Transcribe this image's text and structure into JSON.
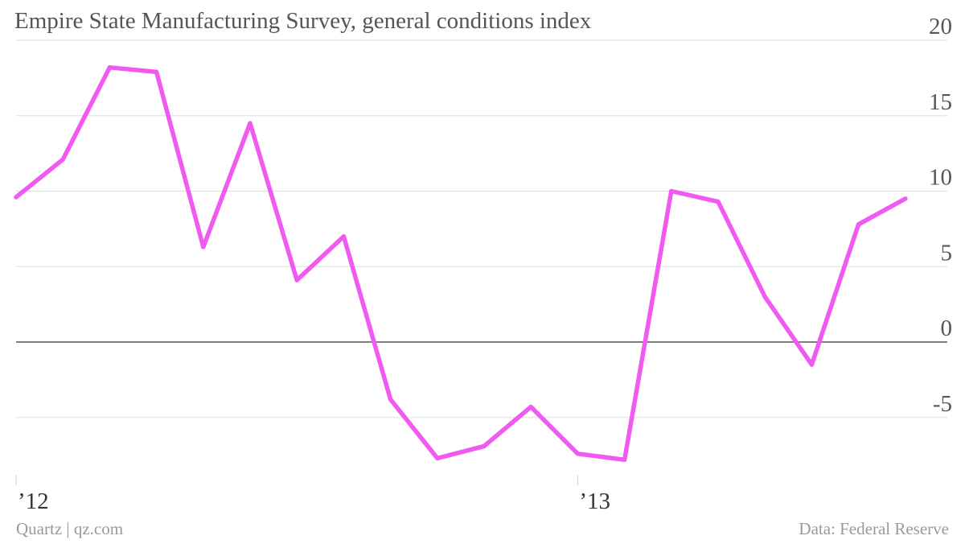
{
  "chart_data": {
    "type": "line",
    "title": "Empire State Manufacturing Survey, general conditions index",
    "xlabel": "",
    "ylabel": "",
    "ylim": [
      -10,
      20
    ],
    "y_ticks": [
      20,
      15,
      10,
      5,
      0,
      -5
    ],
    "y_tick_labels": [
      "20",
      "15",
      "10",
      "5",
      "0",
      "-5"
    ],
    "x_tick_labels": [
      {
        "label": "’12",
        "x": "2012-01"
      },
      {
        "label": "’13",
        "x": "2013-01"
      }
    ],
    "x": [
      "2012-01",
      "2012-02",
      "2012-03",
      "2012-04",
      "2012-05",
      "2012-06",
      "2012-07",
      "2012-08",
      "2012-09",
      "2012-10",
      "2012-11",
      "2012-12",
      "2013-01",
      "2013-02",
      "2013-03",
      "2013-04",
      "2013-05",
      "2013-06",
      "2013-07",
      "2013-08"
    ],
    "series": [
      {
        "color": "#f05af0",
        "values": [
          9.6,
          12.1,
          18.2,
          17.9,
          6.3,
          14.5,
          4.1,
          7.0,
          -3.8,
          -7.7,
          -6.9,
          -4.3,
          -7.4,
          -7.8,
          10.0,
          9.3,
          3.0,
          -1.5,
          7.8,
          9.5
        ]
      }
    ],
    "zero_line": true,
    "grid": true
  },
  "footer": {
    "source_left": "Quartz | qz.com",
    "source_right": "Data: Federal Reserve"
  }
}
